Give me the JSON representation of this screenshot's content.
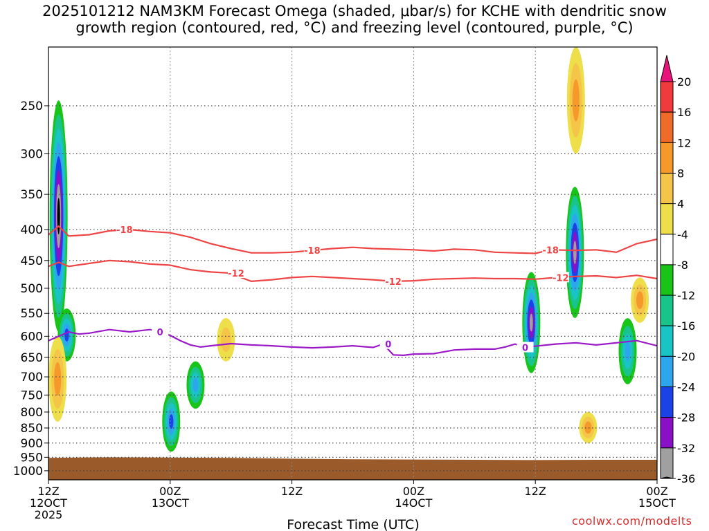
{
  "title": {
    "line1": "2025101212 NAM3KM Forecast Omega (shaded, μbar/s) for KCHE with dendritic snow",
    "line2": "growth region (contoured, red, °C) and freezing level (contoured, purple, °C)"
  },
  "credit": "coolwx.com/modelts",
  "chart_data": {
    "type": "heatmap",
    "title": "2025101212 NAM3KM Forecast Omega (shaded, μbar/s) for KCHE with dendritic snow growth region (contoured, red, °C) and freezing level (contoured, purple, °C)",
    "xlabel": "Forecast Time (UTC)",
    "ylabel": "",
    "x_ticks": [
      {
        "hour": 0,
        "label1": "12Z",
        "label2": "12OCT",
        "label3": "2025"
      },
      {
        "hour": 12,
        "label1": "00Z",
        "label2": "13OCT",
        "label3": ""
      },
      {
        "hour": 24,
        "label1": "12Z",
        "label2": "",
        "label3": ""
      },
      {
        "hour": 36,
        "label1": "00Z",
        "label2": "14OCT",
        "label3": ""
      },
      {
        "hour": 48,
        "label1": "12Z",
        "label2": "",
        "label3": ""
      },
      {
        "hour": 60,
        "label1": "00Z",
        "label2": "15OCT",
        "label3": ""
      }
    ],
    "x_range_hours": [
      0,
      60
    ],
    "y_ticks_mb": [
      250,
      300,
      350,
      400,
      450,
      500,
      550,
      600,
      650,
      700,
      750,
      800,
      850,
      900,
      950,
      1000
    ],
    "y_range_mb": [
      200,
      1035
    ],
    "y_scale": "log-pressure",
    "grid": true,
    "terrain_surface_mb": [
      [
        0,
        952
      ],
      [
        6,
        950
      ],
      [
        12,
        951
      ],
      [
        18,
        952
      ],
      [
        24,
        955
      ],
      [
        30,
        957
      ],
      [
        36,
        958
      ],
      [
        42,
        959
      ],
      [
        48,
        960
      ],
      [
        54,
        959
      ],
      [
        60,
        959
      ]
    ],
    "colorbar": {
      "labels": [
        "20",
        "16",
        "12",
        "8",
        "4",
        "-4",
        "-8",
        "-12",
        "-16",
        "-20",
        "-24",
        "-28",
        "-32",
        "-36"
      ],
      "colors": [
        "#e8137a",
        "#f23a3a",
        "#f06a2a",
        "#f59a2a",
        "#f5c54a",
        "#eede4a",
        "#ffffff",
        "#19c419",
        "#19c48a",
        "#19c4c4",
        "#2ea6ee",
        "#1a42e6",
        "#8a10c8",
        "#a0a0a0",
        "#000000"
      ]
    },
    "contours": [
      {
        "label": "-18",
        "color": "#ee4444",
        "label_positions_hours": [
          7.5,
          26,
          49.5
        ],
        "points": [
          [
            0,
            408
          ],
          [
            1,
            395
          ],
          [
            2,
            410
          ],
          [
            4,
            408
          ],
          [
            6,
            402
          ],
          [
            8,
            400
          ],
          [
            10,
            403
          ],
          [
            12,
            405
          ],
          [
            14,
            412
          ],
          [
            16,
            422
          ],
          [
            18,
            430
          ],
          [
            20,
            437
          ],
          [
            22,
            437
          ],
          [
            24,
            436
          ],
          [
            26,
            433
          ],
          [
            28,
            430
          ],
          [
            30,
            428
          ],
          [
            32,
            430
          ],
          [
            34,
            431
          ],
          [
            36,
            432
          ],
          [
            38,
            434
          ],
          [
            40,
            431
          ],
          [
            42,
            432
          ],
          [
            44,
            436
          ],
          [
            46,
            437
          ],
          [
            48,
            438
          ],
          [
            49.5,
            432
          ],
          [
            52,
            433
          ],
          [
            54,
            432
          ],
          [
            56,
            436
          ],
          [
            58,
            422
          ],
          [
            60,
            415
          ]
        ]
      },
      {
        "label": "-12",
        "color": "#ee4444",
        "label_positions_hours": [
          18.5,
          34,
          50.5
        ],
        "points": [
          [
            0,
            460
          ],
          [
            1,
            453
          ],
          [
            2,
            460
          ],
          [
            4,
            455
          ],
          [
            6,
            450
          ],
          [
            8,
            452
          ],
          [
            10,
            456
          ],
          [
            12,
            458
          ],
          [
            14,
            466
          ],
          [
            16,
            470
          ],
          [
            18,
            472
          ],
          [
            19,
            480
          ],
          [
            20,
            487
          ],
          [
            22,
            484
          ],
          [
            24,
            480
          ],
          [
            26,
            478
          ],
          [
            28,
            480
          ],
          [
            30,
            482
          ],
          [
            32,
            484
          ],
          [
            34,
            487
          ],
          [
            36,
            486
          ],
          [
            38,
            483
          ],
          [
            40,
            482
          ],
          [
            42,
            481
          ],
          [
            44,
            482
          ],
          [
            46,
            482
          ],
          [
            48,
            483
          ],
          [
            50,
            480
          ],
          [
            52,
            478
          ],
          [
            54,
            477
          ],
          [
            56,
            480
          ],
          [
            58,
            476
          ],
          [
            60,
            482
          ]
        ]
      },
      {
        "label": "0",
        "color": "#9b19c8",
        "label_positions_hours": [
          11,
          33.5,
          47
        ],
        "points": [
          [
            0,
            610
          ],
          [
            1,
            600
          ],
          [
            2,
            590
          ],
          [
            3,
            595
          ],
          [
            4,
            593
          ],
          [
            6,
            585
          ],
          [
            8,
            590
          ],
          [
            10,
            585
          ],
          [
            11,
            590
          ],
          [
            12,
            598
          ],
          [
            13,
            610
          ],
          [
            14,
            620
          ],
          [
            15,
            625
          ],
          [
            16,
            622
          ],
          [
            18,
            617
          ],
          [
            20,
            620
          ],
          [
            22,
            622
          ],
          [
            24,
            625
          ],
          [
            26,
            627
          ],
          [
            28,
            625
          ],
          [
            30,
            622
          ],
          [
            32,
            626
          ],
          [
            33,
            618
          ],
          [
            34,
            644
          ],
          [
            35,
            645
          ],
          [
            36,
            642
          ],
          [
            38,
            641
          ],
          [
            40,
            632
          ],
          [
            42,
            630
          ],
          [
            44,
            630
          ],
          [
            45,
            625
          ],
          [
            46,
            618
          ],
          [
            47,
            626
          ],
          [
            48,
            623
          ],
          [
            50,
            618
          ],
          [
            52,
            615
          ],
          [
            54,
            620
          ],
          [
            56,
            615
          ],
          [
            58,
            610
          ],
          [
            60,
            622
          ]
        ]
      }
    ],
    "omega_features": [
      {
        "hour": 1.0,
        "p_top": 245,
        "p_bot": 590,
        "peak": -36,
        "kind": "ascent"
      },
      {
        "hour": 1.8,
        "p_top": 540,
        "p_bot": 660,
        "peak": -24,
        "kind": "ascent"
      },
      {
        "hour": 0.9,
        "p_top": 600,
        "p_bot": 830,
        "peak": 16,
        "kind": "descent"
      },
      {
        "hour": 12.1,
        "p_top": 740,
        "p_bot": 930,
        "peak": -24,
        "kind": "ascent"
      },
      {
        "hour": 14.5,
        "p_top": 660,
        "p_bot": 790,
        "peak": -20,
        "kind": "ascent"
      },
      {
        "hour": 17.5,
        "p_top": 560,
        "p_bot": 660,
        "peak": 12,
        "kind": "descent"
      },
      {
        "hour": 47.6,
        "p_top": 470,
        "p_bot": 690,
        "peak": -32,
        "kind": "ascent"
      },
      {
        "hour": 51.9,
        "p_top": 340,
        "p_bot": 560,
        "peak": -32,
        "kind": "ascent"
      },
      {
        "hour": 52.0,
        "p_top": 200,
        "p_bot": 300,
        "peak": 16,
        "kind": "descent"
      },
      {
        "hour": 53.2,
        "p_top": 800,
        "p_bot": 900,
        "peak": 16,
        "kind": "descent"
      },
      {
        "hour": 58.3,
        "p_top": 480,
        "p_bot": 570,
        "peak": 16,
        "kind": "descent"
      },
      {
        "hour": 57.1,
        "p_top": 560,
        "p_bot": 720,
        "peak": -20,
        "kind": "ascent"
      }
    ]
  }
}
